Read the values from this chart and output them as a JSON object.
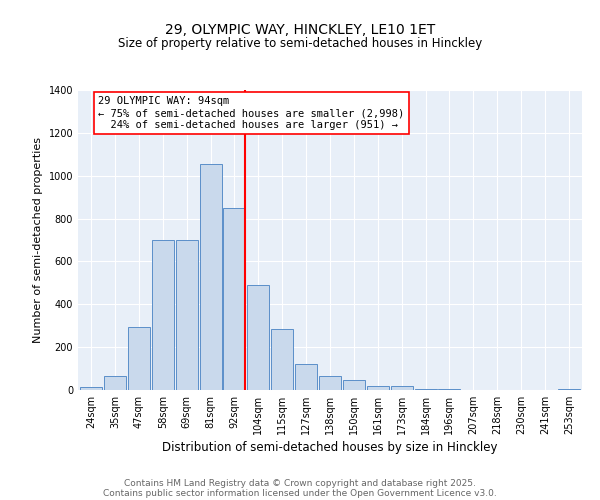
{
  "title": "29, OLYMPIC WAY, HINCKLEY, LE10 1ET",
  "subtitle": "Size of property relative to semi-detached houses in Hinckley",
  "xlabel": "Distribution of semi-detached houses by size in Hinckley",
  "ylabel": "Number of semi-detached properties",
  "bin_labels": [
    "24sqm",
    "35sqm",
    "47sqm",
    "58sqm",
    "69sqm",
    "81sqm",
    "92sqm",
    "104sqm",
    "115sqm",
    "127sqm",
    "138sqm",
    "150sqm",
    "161sqm",
    "173sqm",
    "184sqm",
    "196sqm",
    "207sqm",
    "218sqm",
    "230sqm",
    "241sqm",
    "253sqm"
  ],
  "bar_values": [
    15,
    65,
    295,
    700,
    700,
    1055,
    850,
    490,
    285,
    120,
    65,
    45,
    20,
    20,
    5,
    5,
    2,
    0,
    2,
    0,
    5
  ],
  "bar_color": "#c9d9ec",
  "bar_edge_color": "#5b8fc9",
  "vline_x_idx": 6,
  "vline_color": "red",
  "vline_label": "29 OLYMPIC WAY: 94sqm",
  "pct_smaller": 75,
  "count_smaller": 2998,
  "pct_larger": 24,
  "count_larger": 951,
  "ylim": [
    0,
    1400
  ],
  "yticks": [
    0,
    200,
    400,
    600,
    800,
    1000,
    1200,
    1400
  ],
  "bg_color": "#e8eff8",
  "footer_line1": "Contains HM Land Registry data © Crown copyright and database right 2025.",
  "footer_line2": "Contains public sector information licensed under the Open Government Licence v3.0.",
  "title_fontsize": 10,
  "subtitle_fontsize": 8.5,
  "xlabel_fontsize": 8.5,
  "ylabel_fontsize": 8,
  "tick_fontsize": 7,
  "annot_fontsize": 7.5,
  "footer_fontsize": 6.5
}
